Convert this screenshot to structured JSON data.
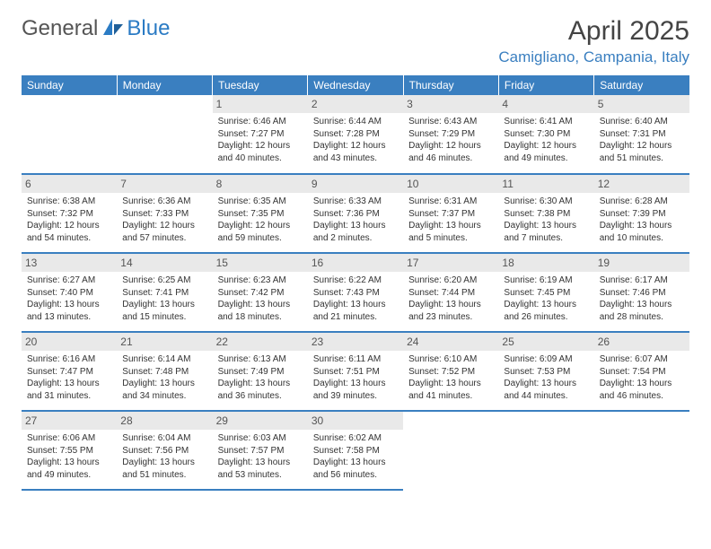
{
  "brand": {
    "part1": "General",
    "part2": "Blue"
  },
  "title": "April 2025",
  "location": "Camigliano, Campania, Italy",
  "colors": {
    "header_bg": "#3a7fc0",
    "header_text": "#ffffff",
    "daynum_bg": "#e9e9e9",
    "accent": "#2b7bc4",
    "text": "#333333"
  },
  "weekdays": [
    "Sunday",
    "Monday",
    "Tuesday",
    "Wednesday",
    "Thursday",
    "Friday",
    "Saturday"
  ],
  "weeks": [
    [
      null,
      null,
      {
        "day": "1",
        "sunrise": "Sunrise: 6:46 AM",
        "sunset": "Sunset: 7:27 PM",
        "daylight": "Daylight: 12 hours and 40 minutes."
      },
      {
        "day": "2",
        "sunrise": "Sunrise: 6:44 AM",
        "sunset": "Sunset: 7:28 PM",
        "daylight": "Daylight: 12 hours and 43 minutes."
      },
      {
        "day": "3",
        "sunrise": "Sunrise: 6:43 AM",
        "sunset": "Sunset: 7:29 PM",
        "daylight": "Daylight: 12 hours and 46 minutes."
      },
      {
        "day": "4",
        "sunrise": "Sunrise: 6:41 AM",
        "sunset": "Sunset: 7:30 PM",
        "daylight": "Daylight: 12 hours and 49 minutes."
      },
      {
        "day": "5",
        "sunrise": "Sunrise: 6:40 AM",
        "sunset": "Sunset: 7:31 PM",
        "daylight": "Daylight: 12 hours and 51 minutes."
      }
    ],
    [
      {
        "day": "6",
        "sunrise": "Sunrise: 6:38 AM",
        "sunset": "Sunset: 7:32 PM",
        "daylight": "Daylight: 12 hours and 54 minutes."
      },
      {
        "day": "7",
        "sunrise": "Sunrise: 6:36 AM",
        "sunset": "Sunset: 7:33 PM",
        "daylight": "Daylight: 12 hours and 57 minutes."
      },
      {
        "day": "8",
        "sunrise": "Sunrise: 6:35 AM",
        "sunset": "Sunset: 7:35 PM",
        "daylight": "Daylight: 12 hours and 59 minutes."
      },
      {
        "day": "9",
        "sunrise": "Sunrise: 6:33 AM",
        "sunset": "Sunset: 7:36 PM",
        "daylight": "Daylight: 13 hours and 2 minutes."
      },
      {
        "day": "10",
        "sunrise": "Sunrise: 6:31 AM",
        "sunset": "Sunset: 7:37 PM",
        "daylight": "Daylight: 13 hours and 5 minutes."
      },
      {
        "day": "11",
        "sunrise": "Sunrise: 6:30 AM",
        "sunset": "Sunset: 7:38 PM",
        "daylight": "Daylight: 13 hours and 7 minutes."
      },
      {
        "day": "12",
        "sunrise": "Sunrise: 6:28 AM",
        "sunset": "Sunset: 7:39 PM",
        "daylight": "Daylight: 13 hours and 10 minutes."
      }
    ],
    [
      {
        "day": "13",
        "sunrise": "Sunrise: 6:27 AM",
        "sunset": "Sunset: 7:40 PM",
        "daylight": "Daylight: 13 hours and 13 minutes."
      },
      {
        "day": "14",
        "sunrise": "Sunrise: 6:25 AM",
        "sunset": "Sunset: 7:41 PM",
        "daylight": "Daylight: 13 hours and 15 minutes."
      },
      {
        "day": "15",
        "sunrise": "Sunrise: 6:23 AM",
        "sunset": "Sunset: 7:42 PM",
        "daylight": "Daylight: 13 hours and 18 minutes."
      },
      {
        "day": "16",
        "sunrise": "Sunrise: 6:22 AM",
        "sunset": "Sunset: 7:43 PM",
        "daylight": "Daylight: 13 hours and 21 minutes."
      },
      {
        "day": "17",
        "sunrise": "Sunrise: 6:20 AM",
        "sunset": "Sunset: 7:44 PM",
        "daylight": "Daylight: 13 hours and 23 minutes."
      },
      {
        "day": "18",
        "sunrise": "Sunrise: 6:19 AM",
        "sunset": "Sunset: 7:45 PM",
        "daylight": "Daylight: 13 hours and 26 minutes."
      },
      {
        "day": "19",
        "sunrise": "Sunrise: 6:17 AM",
        "sunset": "Sunset: 7:46 PM",
        "daylight": "Daylight: 13 hours and 28 minutes."
      }
    ],
    [
      {
        "day": "20",
        "sunrise": "Sunrise: 6:16 AM",
        "sunset": "Sunset: 7:47 PM",
        "daylight": "Daylight: 13 hours and 31 minutes."
      },
      {
        "day": "21",
        "sunrise": "Sunrise: 6:14 AM",
        "sunset": "Sunset: 7:48 PM",
        "daylight": "Daylight: 13 hours and 34 minutes."
      },
      {
        "day": "22",
        "sunrise": "Sunrise: 6:13 AM",
        "sunset": "Sunset: 7:49 PM",
        "daylight": "Daylight: 13 hours and 36 minutes."
      },
      {
        "day": "23",
        "sunrise": "Sunrise: 6:11 AM",
        "sunset": "Sunset: 7:51 PM",
        "daylight": "Daylight: 13 hours and 39 minutes."
      },
      {
        "day": "24",
        "sunrise": "Sunrise: 6:10 AM",
        "sunset": "Sunset: 7:52 PM",
        "daylight": "Daylight: 13 hours and 41 minutes."
      },
      {
        "day": "25",
        "sunrise": "Sunrise: 6:09 AM",
        "sunset": "Sunset: 7:53 PM",
        "daylight": "Daylight: 13 hours and 44 minutes."
      },
      {
        "day": "26",
        "sunrise": "Sunrise: 6:07 AM",
        "sunset": "Sunset: 7:54 PM",
        "daylight": "Daylight: 13 hours and 46 minutes."
      }
    ],
    [
      {
        "day": "27",
        "sunrise": "Sunrise: 6:06 AM",
        "sunset": "Sunset: 7:55 PM",
        "daylight": "Daylight: 13 hours and 49 minutes."
      },
      {
        "day": "28",
        "sunrise": "Sunrise: 6:04 AM",
        "sunset": "Sunset: 7:56 PM",
        "daylight": "Daylight: 13 hours and 51 minutes."
      },
      {
        "day": "29",
        "sunrise": "Sunrise: 6:03 AM",
        "sunset": "Sunset: 7:57 PM",
        "daylight": "Daylight: 13 hours and 53 minutes."
      },
      {
        "day": "30",
        "sunrise": "Sunrise: 6:02 AM",
        "sunset": "Sunset: 7:58 PM",
        "daylight": "Daylight: 13 hours and 56 minutes."
      },
      null,
      null,
      null
    ]
  ]
}
